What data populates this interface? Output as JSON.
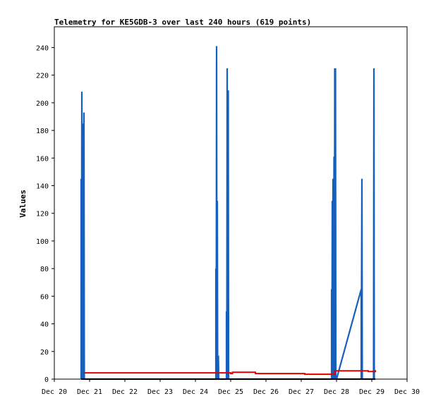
{
  "chart_data": {
    "type": "line",
    "title": "Telemetry for KE5GDB-3 over last 240 hours (619 points)",
    "xlabel": "",
    "ylabel": "Values",
    "ylim": [
      0,
      255
    ],
    "xlim": [
      "Dec 20",
      "Dec 30"
    ],
    "x_ticks": [
      "Dec 20",
      "Dec 21",
      "Dec 22",
      "Dec 23",
      "Dec 24",
      "Dec 25",
      "Dec 26",
      "Dec 27",
      "Dec 28",
      "Dec 29",
      "Dec 30"
    ],
    "y_ticks": [
      0,
      20,
      40,
      60,
      80,
      100,
      120,
      140,
      160,
      180,
      200,
      220,
      240
    ],
    "grid": false,
    "legend": "none",
    "x_unit": "days since Dec 20",
    "colors": {
      "series_blue": "#1560bd",
      "series_red": "#e00000",
      "series_black": "#000000"
    },
    "series": [
      {
        "color": "#1560bd",
        "points": [
          [
            0.76,
            0
          ],
          [
            0.76,
            145
          ],
          [
            0.77,
            0
          ],
          [
            0.78,
            208
          ],
          [
            0.79,
            0
          ],
          [
            0.8,
            177
          ],
          [
            0.81,
            0
          ],
          [
            0.82,
            185
          ],
          [
            0.83,
            0
          ],
          [
            0.84,
            193
          ],
          [
            0.85,
            0
          ],
          [
            4.58,
            0
          ],
          [
            4.58,
            80
          ],
          [
            4.59,
            0
          ],
          [
            4.6,
            241
          ],
          [
            4.61,
            0
          ],
          [
            4.62,
            129
          ],
          [
            4.63,
            0
          ],
          [
            4.65,
            17
          ],
          [
            4.66,
            0
          ],
          [
            4.88,
            0
          ],
          [
            4.88,
            49
          ],
          [
            4.89,
            0
          ],
          [
            4.9,
            225
          ],
          [
            4.91,
            0
          ],
          [
            4.93,
            209
          ],
          [
            4.94,
            0
          ],
          [
            7.86,
            0
          ],
          [
            7.86,
            65
          ],
          [
            7.87,
            0
          ],
          [
            7.88,
            129
          ],
          [
            7.89,
            0
          ],
          [
            7.9,
            145
          ],
          [
            7.91,
            0
          ],
          [
            7.93,
            161
          ],
          [
            7.94,
            0
          ],
          [
            7.95,
            225
          ],
          [
            7.96,
            0
          ],
          [
            7.97,
            225
          ],
          [
            7.98,
            0
          ],
          [
            8.0,
            0
          ],
          [
            8.7,
            65
          ],
          [
            8.7,
            0
          ],
          [
            8.72,
            145
          ],
          [
            8.73,
            0
          ],
          [
            9.05,
            0
          ],
          [
            9.06,
            225
          ],
          [
            9.07,
            0
          ]
        ]
      },
      {
        "color": "#e00000",
        "points": [
          [
            0.86,
            4
          ],
          [
            0.86,
            4.5
          ],
          [
            5.0,
            4.5
          ],
          [
            5.0,
            4
          ],
          [
            5.05,
            4
          ],
          [
            5.05,
            5
          ],
          [
            5.7,
            5
          ],
          [
            5.7,
            4
          ],
          [
            7.1,
            4
          ],
          [
            7.1,
            3.5
          ],
          [
            7.95,
            3.5
          ],
          [
            7.95,
            6
          ],
          [
            8.9,
            6
          ],
          [
            8.9,
            5.5
          ],
          [
            9.1,
            5.5
          ],
          [
            9.1,
            6.5
          ]
        ]
      },
      {
        "color": "#000000",
        "points": [
          [
            0.76,
            0
          ],
          [
            9.1,
            0
          ]
        ]
      }
    ]
  }
}
